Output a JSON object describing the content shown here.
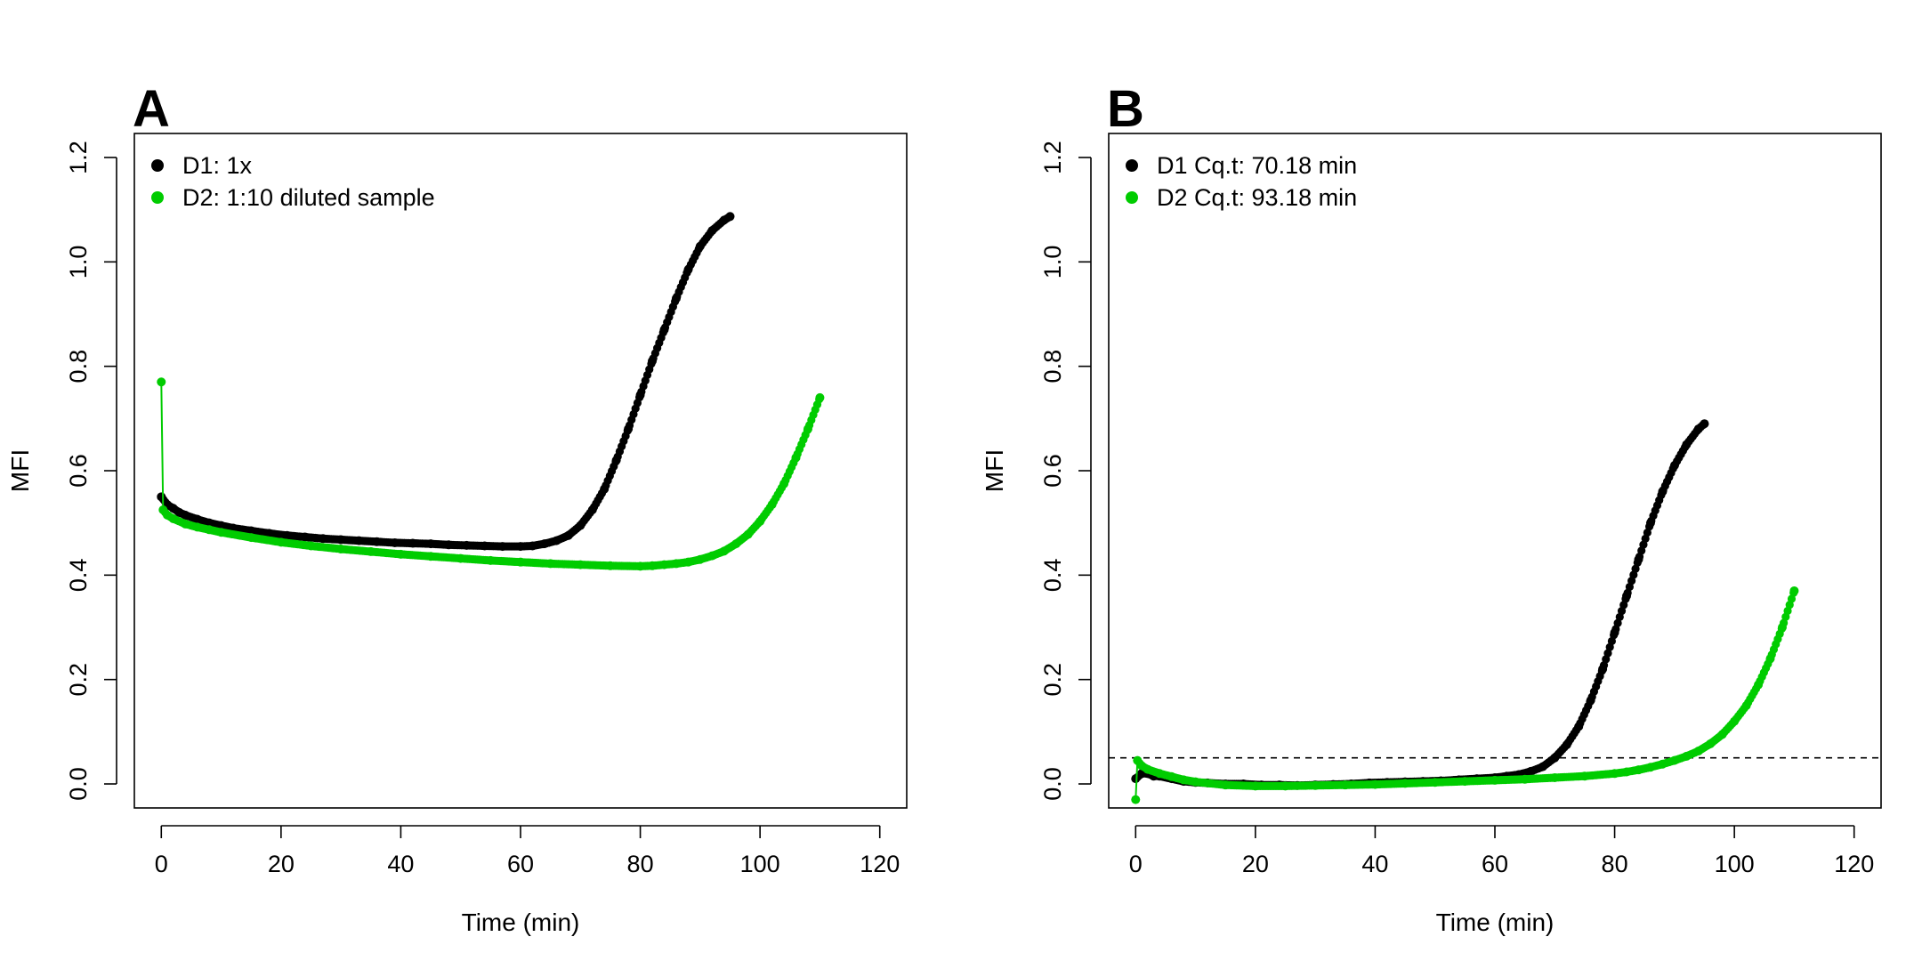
{
  "chart_data": [
    {
      "type": "scatter",
      "panel_label": "A",
      "xlabel": "Time (min)",
      "ylabel": "MFI",
      "xlim": [
        -4.5,
        124.5
      ],
      "ylim": [
        -0.046,
        1.246
      ],
      "x_ticks": [
        0,
        20,
        40,
        60,
        80,
        100,
        120
      ],
      "x_tick_labels": [
        "0",
        "20",
        "40",
        "60",
        "80",
        "100",
        "120"
      ],
      "y_ticks": [
        0.0,
        0.2,
        0.4,
        0.6,
        0.8,
        1.0,
        1.2
      ],
      "y_tick_labels": [
        "0.0",
        "0.2",
        "0.4",
        "0.6",
        "0.8",
        "1.0",
        "1.2"
      ],
      "grid": false,
      "legend_position": "top-left",
      "threshold": null,
      "series": [
        {
          "name": "D1: 1x",
          "color": "#000000",
          "x": [
            0,
            1,
            2,
            3,
            4,
            6,
            8,
            10,
            12,
            15,
            18,
            21,
            24,
            27,
            30,
            33,
            36,
            39,
            42,
            45,
            48,
            51,
            54,
            57,
            60,
            62,
            64,
            66,
            68,
            70,
            72,
            74,
            76,
            78,
            80,
            82,
            84,
            86,
            88,
            90,
            92,
            94,
            95
          ],
          "y": [
            0.55,
            0.535,
            0.528,
            0.52,
            0.515,
            0.507,
            0.5,
            0.495,
            0.49,
            0.485,
            0.48,
            0.476,
            0.473,
            0.47,
            0.468,
            0.466,
            0.464,
            0.462,
            0.461,
            0.46,
            0.458,
            0.457,
            0.456,
            0.455,
            0.455,
            0.456,
            0.46,
            0.466,
            0.476,
            0.495,
            0.525,
            0.565,
            0.62,
            0.68,
            0.745,
            0.81,
            0.87,
            0.93,
            0.985,
            1.03,
            1.06,
            1.08,
            1.087
          ]
        },
        {
          "name": "D2: 1:10 diluted sample",
          "color": "#00cc00",
          "x": [
            0,
            0.3,
            1,
            2,
            4,
            6,
            8,
            10,
            15,
            20,
            25,
            30,
            35,
            40,
            45,
            50,
            55,
            60,
            65,
            70,
            75,
            80,
            82,
            84,
            86,
            88,
            90,
            92,
            94,
            96,
            98,
            100,
            102,
            104,
            106,
            108,
            110
          ],
          "y": [
            0.77,
            0.525,
            0.515,
            0.508,
            0.498,
            0.492,
            0.487,
            0.482,
            0.472,
            0.463,
            0.456,
            0.45,
            0.445,
            0.44,
            0.436,
            0.432,
            0.428,
            0.425,
            0.422,
            0.42,
            0.418,
            0.417,
            0.418,
            0.42,
            0.422,
            0.425,
            0.43,
            0.437,
            0.446,
            0.46,
            0.478,
            0.503,
            0.535,
            0.575,
            0.625,
            0.68,
            0.74
          ]
        }
      ]
    },
    {
      "type": "scatter",
      "panel_label": "B",
      "xlabel": "Time (min)",
      "ylabel": "MFI",
      "xlim": [
        -4.5,
        124.5
      ],
      "ylim": [
        -0.046,
        1.246
      ],
      "x_ticks": [
        0,
        20,
        40,
        60,
        80,
        100,
        120
      ],
      "x_tick_labels": [
        "0",
        "20",
        "40",
        "60",
        "80",
        "100",
        "120"
      ],
      "y_ticks": [
        0.0,
        0.2,
        0.4,
        0.6,
        0.8,
        1.0,
        1.2
      ],
      "y_tick_labels": [
        "0.0",
        "0.2",
        "0.4",
        "0.6",
        "0.8",
        "1.0",
        "1.2"
      ],
      "grid": false,
      "legend_position": "top-left",
      "threshold": 0.05,
      "series": [
        {
          "name": "D1 Cq.t:  70.18 min",
          "color": "#000000",
          "x": [
            0,
            1,
            2,
            3,
            4,
            6,
            8,
            10,
            12,
            15,
            18,
            21,
            24,
            27,
            30,
            33,
            36,
            39,
            42,
            45,
            48,
            51,
            54,
            57,
            60,
            62,
            64,
            66,
            68,
            70,
            72,
            74,
            76,
            78,
            80,
            82,
            84,
            86,
            88,
            90,
            92,
            94,
            95
          ],
          "y": [
            0.01,
            0.02,
            0.02,
            0.015,
            0.015,
            0.01,
            0.005,
            0.003,
            0.002,
            0.0,
            0.0,
            -0.002,
            -0.002,
            -0.003,
            -0.002,
            -0.001,
            0.0,
            0.002,
            0.003,
            0.004,
            0.005,
            0.006,
            0.008,
            0.01,
            0.012,
            0.015,
            0.018,
            0.024,
            0.033,
            0.05,
            0.075,
            0.11,
            0.16,
            0.22,
            0.29,
            0.36,
            0.43,
            0.5,
            0.56,
            0.61,
            0.65,
            0.68,
            0.69
          ]
        },
        {
          "name": "D2 Cq.t:  93.18 min",
          "color": "#00cc00",
          "x": [
            0,
            0.3,
            1,
            2,
            4,
            6,
            8,
            10,
            15,
            20,
            25,
            30,
            35,
            40,
            45,
            50,
            55,
            60,
            65,
            70,
            75,
            80,
            82,
            84,
            86,
            88,
            90,
            92,
            94,
            96,
            98,
            100,
            102,
            104,
            106,
            108,
            110
          ],
          "y": [
            -0.03,
            0.045,
            0.035,
            0.028,
            0.02,
            0.014,
            0.008,
            0.004,
            -0.002,
            -0.004,
            -0.004,
            -0.003,
            -0.002,
            -0.001,
            0.001,
            0.003,
            0.005,
            0.007,
            0.009,
            0.012,
            0.015,
            0.02,
            0.023,
            0.027,
            0.032,
            0.038,
            0.045,
            0.053,
            0.063,
            0.077,
            0.095,
            0.12,
            0.15,
            0.19,
            0.24,
            0.3,
            0.37
          ]
        }
      ]
    }
  ]
}
